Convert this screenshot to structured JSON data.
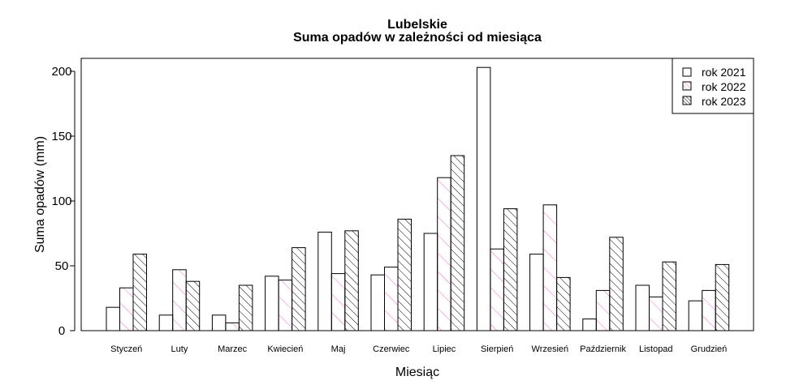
{
  "chart_data": {
    "type": "bar",
    "title": "Lubelskie",
    "subtitle": "Suma opadów w zależności od miesiąca",
    "xlabel": "Miesiąc",
    "ylabel": "Suma opadów (mm)",
    "ylim": [
      0,
      200
    ],
    "yticks": [
      0,
      50,
      100,
      150,
      200
    ],
    "grid": false,
    "legend_position": "top-right",
    "categories": [
      "Styczeń",
      "Luty",
      "Marzec",
      "Kwiecień",
      "Maj",
      "Czerwiec",
      "Lipiec",
      "Sierpień",
      "Wrzesień",
      "Październik",
      "Listopad",
      "Grudzień"
    ],
    "series": [
      {
        "name": "rok 2021",
        "pattern": "none",
        "color": "#000000",
        "values": [
          18,
          12,
          12,
          42,
          76,
          43,
          75,
          203,
          59,
          9,
          35,
          23
        ]
      },
      {
        "name": "rok 2022",
        "pattern": "hatch-sparse",
        "color": "#ff66cc",
        "values": [
          33,
          47,
          6,
          39,
          44,
          49,
          118,
          63,
          97,
          31,
          26,
          31
        ]
      },
      {
        "name": "rok 2023",
        "pattern": "hatch-dense",
        "color": "#000000",
        "values": [
          59,
          38,
          35,
          64,
          77,
          86,
          135,
          94,
          41,
          72,
          53,
          51
        ]
      }
    ]
  }
}
